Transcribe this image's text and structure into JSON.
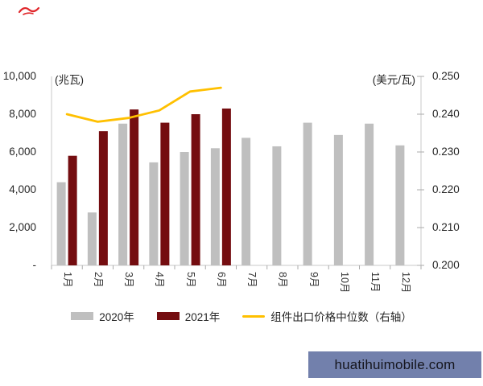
{
  "page": {
    "watermark": {
      "text": "huatihuimobile.com",
      "bg_color": "#7280AC",
      "text_color": "#15151D"
    },
    "logo_mark": "red-scribble-mark",
    "colors": {
      "axis_line": "#C9C9C9",
      "tick_mark": "#ABABAB",
      "text": "#262626"
    }
  },
  "chart_data": {
    "type": "bar+line",
    "title": "",
    "grid": false,
    "legend_position": "bottom",
    "categories": [
      "1月",
      "2月",
      "3月",
      "4月",
      "5月",
      "6月",
      "7月",
      "8月",
      "9月",
      "10月",
      "11月",
      "12月"
    ],
    "series": [
      {
        "name": "2020年",
        "type": "bar",
        "axis": "left",
        "color": "#BFBFBF",
        "values": [
          4400,
          2800,
          7500,
          5450,
          6000,
          6200,
          6750,
          6300,
          7550,
          6900,
          7500,
          6350
        ]
      },
      {
        "name": "2021年",
        "type": "bar",
        "axis": "left",
        "color": "#740D10",
        "values": [
          5800,
          7100,
          8250,
          7550,
          8000,
          8300,
          null,
          null,
          null,
          null,
          null,
          null
        ]
      },
      {
        "name": "组件出口价格中位数（右轴）",
        "type": "line",
        "axis": "right",
        "color": "#FFC000",
        "values": [
          0.24,
          0.238,
          0.239,
          0.241,
          0.246,
          0.247,
          null,
          null,
          null,
          null,
          null,
          null
        ]
      }
    ],
    "left_axis": {
      "unit_label": "(兆瓦)",
      "min": 0,
      "max": 10000,
      "tick_labels": [
        "10,000",
        "8,000",
        "6,000",
        "4,000",
        "2,000",
        "-"
      ]
    },
    "right_axis": {
      "unit_label": "(美元/瓦)",
      "min": 0.2,
      "max": 0.25,
      "tick_labels": [
        "0.250",
        "0.240",
        "0.230",
        "0.220",
        "0.210",
        "0.200"
      ]
    }
  }
}
